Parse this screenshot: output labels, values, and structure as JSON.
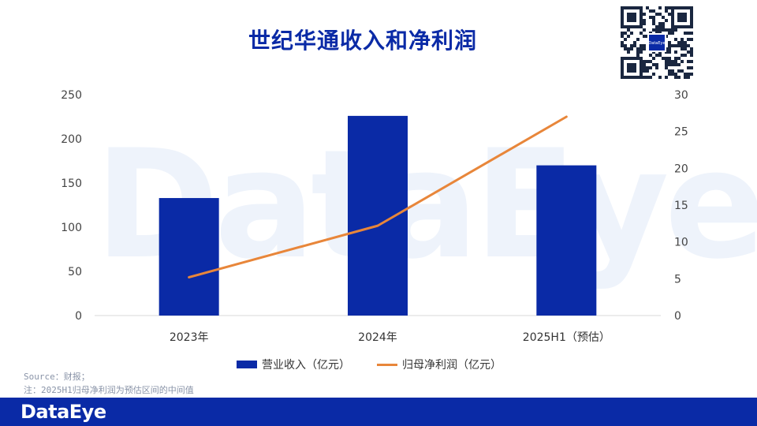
{
  "title": "世纪华通收入和净利润",
  "watermark_text": "DataEye",
  "chart_data": {
    "type": "bar",
    "categories": [
      "2023年",
      "2024年",
      "2025H1（预估）"
    ],
    "series": [
      {
        "name": "营业收入（亿元）",
        "type": "bar",
        "axis": "left",
        "values": [
          133,
          226,
          170
        ]
      },
      {
        "name": "归母净利润（亿元）",
        "type": "line",
        "axis": "right",
        "values": [
          5.2,
          12.2,
          27.0
        ]
      }
    ],
    "y_left": {
      "min": 0,
      "max": 250,
      "ticks": [
        0,
        50,
        100,
        150,
        200,
        250
      ]
    },
    "y_right": {
      "min": 0,
      "max": 30,
      "ticks": [
        0,
        5,
        10,
        15,
        20,
        25,
        30
      ]
    },
    "legend_position": "bottom",
    "grid": false,
    "colors": {
      "bar": "#0a2aa6",
      "line": "#e8863a"
    }
  },
  "source_lines": [
    "Source：财报；",
    "注：2025H1归母净利润为预估区间的中间值"
  ],
  "footer": {
    "logo": "DataEye"
  },
  "qr": {
    "center_label": "DataEye"
  }
}
